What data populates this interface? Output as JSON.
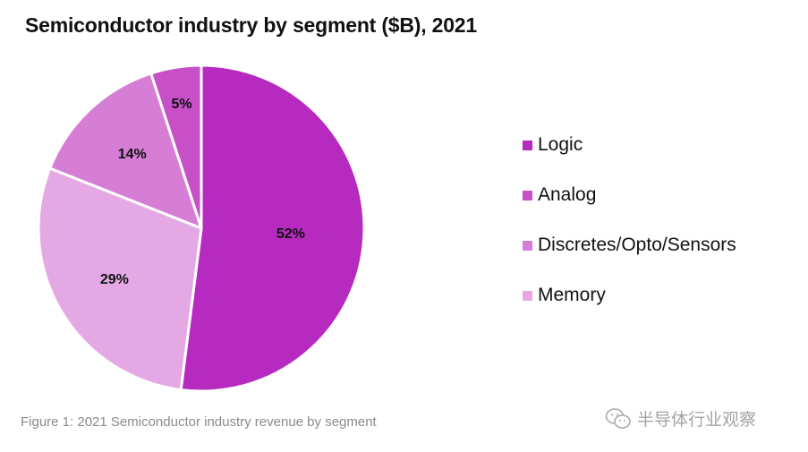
{
  "header": {
    "title": "Semiconductor industry by segment ($B), 2021"
  },
  "caption": "Figure 1: 2021 Semiconductor industry revenue by segment",
  "watermark": {
    "text": "半导体行业观察",
    "icon": "wechat-icon"
  },
  "chart_data": {
    "type": "pie",
    "title": "Semiconductor industry by segment ($B), 2021",
    "slices": [
      {
        "name": "Logic",
        "value": 52,
        "label": "52%",
        "color": "#b62abf"
      },
      {
        "name": "Memory",
        "value": 29,
        "label": "29%",
        "color": "#e4a9e4"
      },
      {
        "name": "Discretes/Opto/Sensors",
        "value": 14,
        "label": "14%",
        "color": "#d67ed6"
      },
      {
        "name": "Analog",
        "value": 5,
        "label": "5%",
        "color": "#c750c9"
      }
    ],
    "legend": {
      "placement": "right",
      "entries": [
        {
          "name": "Logic",
          "color": "#b62abf"
        },
        {
          "name": "Analog",
          "color": "#c750c9"
        },
        {
          "name": "Discretes/Opto/Sensors",
          "color": "#d67ed6"
        },
        {
          "name": "Memory",
          "color": "#e4a9e4"
        }
      ]
    }
  }
}
